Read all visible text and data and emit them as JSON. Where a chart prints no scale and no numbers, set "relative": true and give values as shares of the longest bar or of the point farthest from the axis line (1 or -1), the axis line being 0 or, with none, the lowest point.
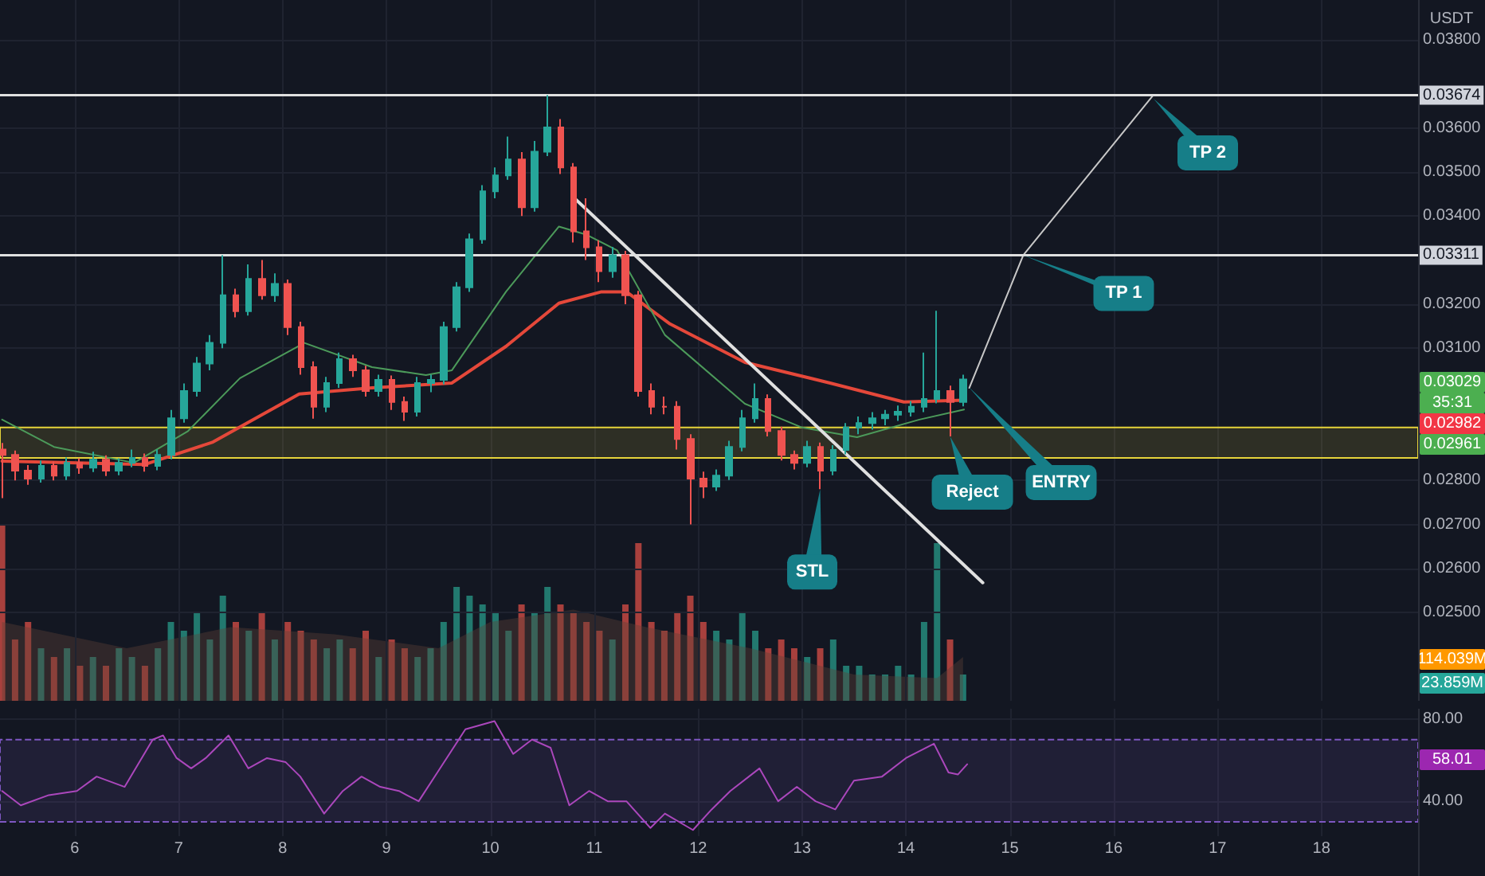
{
  "chart_data": [
    {
      "type": "candlestick",
      "ylabel": "USDT",
      "xlim": [
        5.28,
        18.93
      ],
      "xticks": [
        6,
        7,
        8,
        9,
        10,
        11,
        12,
        13,
        14,
        15,
        16,
        17,
        18
      ],
      "ylim": [
        0.023,
        0.0389
      ],
      "yticks": [
        {
          "value": 0.025,
          "label": "0.02500"
        },
        {
          "value": 0.026,
          "label": "0.02600"
        },
        {
          "value": 0.027,
          "label": "0.02700"
        },
        {
          "value": 0.028,
          "label": "0.02800"
        },
        {
          "value": 0.031,
          "label": "0.03100"
        },
        {
          "value": 0.032,
          "label": "0.03200"
        },
        {
          "value": 0.034,
          "label": "0.03400"
        },
        {
          "value": 0.035,
          "label": "0.03500"
        },
        {
          "value": 0.036,
          "label": "0.03600"
        },
        {
          "value": 0.038,
          "label": "0.03800"
        }
      ],
      "grid": true,
      "tick_labels": "y",
      "series": [
        {
          "x": [
            5.3,
            5.425,
            5.55,
            5.675,
            5.8,
            5.925,
            6.05,
            6.175,
            6.3,
            6.425,
            6.55,
            6.675,
            6.8,
            6.925,
            7.05,
            7.175,
            7.3,
            7.425,
            7.55,
            7.675,
            7.8,
            7.925,
            8.05,
            8.175,
            8.3,
            8.425,
            8.55,
            8.675,
            8.8,
            8.925,
            9.05,
            9.175,
            9.3,
            9.425,
            9.55,
            9.675,
            9.8,
            9.925,
            10.05,
            10.175,
            10.3,
            10.425,
            10.55,
            10.675,
            10.8,
            10.925,
            11.05,
            11.175,
            11.3,
            11.425,
            11.55,
            11.675,
            11.8,
            11.925,
            12.05,
            12.175,
            12.3,
            12.425,
            12.55,
            12.675,
            12.8,
            12.925,
            13.05,
            13.175,
            13.3,
            13.425,
            13.55,
            13.675,
            13.8,
            13.925,
            14.05,
            14.175,
            14.3,
            14.425,
            14.55
          ],
          "ohlc": [
            [
              0.0287,
              0.02885,
              0.0276,
              0.02858
            ],
            [
              0.02858,
              0.02868,
              0.028,
              0.02822
            ],
            [
              0.02822,
              0.02835,
              0.0279,
              0.02804
            ],
            [
              0.02804,
              0.02845,
              0.02795,
              0.02833
            ],
            [
              0.02833,
              0.02843,
              0.028,
              0.02811
            ],
            [
              0.02811,
              0.02852,
              0.02801,
              0.0284
            ],
            [
              0.0284,
              0.0285,
              0.02815,
              0.02829
            ],
            [
              0.02829,
              0.02865,
              0.02819,
              0.02847
            ],
            [
              0.02847,
              0.02857,
              0.0281,
              0.02822
            ],
            [
              0.02822,
              0.0285,
              0.02812,
              0.0284
            ],
            [
              0.0284,
              0.0287,
              0.0283,
              0.02851
            ],
            [
              0.02851,
              0.02861,
              0.0282,
              0.02833
            ],
            [
              0.02833,
              0.0287,
              0.02823,
              0.02858
            ],
            [
              0.02858,
              0.0296,
              0.02848,
              0.02941
            ],
            [
              0.02941,
              0.0302,
              0.02931,
              0.03003
            ],
            [
              0.03003,
              0.0308,
              0.0299,
              0.03065
            ],
            [
              0.03065,
              0.0313,
              0.0305,
              0.03112
            ],
            [
              0.03112,
              0.03311,
              0.031,
              0.0322
            ],
            [
              0.0322,
              0.03235,
              0.0317,
              0.03184
            ],
            [
              0.03184,
              0.0329,
              0.03174,
              0.03257
            ],
            [
              0.03257,
              0.033,
              0.0321,
              0.0322
            ],
            [
              0.0322,
              0.0327,
              0.03205,
              0.03246
            ],
            [
              0.03246,
              0.03256,
              0.0313,
              0.03148
            ],
            [
              0.03148,
              0.0316,
              0.0304,
              0.03057
            ],
            [
              0.03057,
              0.0307,
              0.0294,
              0.02967
            ],
            [
              0.02967,
              0.03035,
              0.02955,
              0.03021
            ],
            [
              0.03021,
              0.0309,
              0.0301,
              0.03075
            ],
            [
              0.03075,
              0.03085,
              0.03035,
              0.0305
            ],
            [
              0.0305,
              0.0306,
              0.0299,
              0.03003
            ],
            [
              0.03003,
              0.0304,
              0.0299,
              0.03028
            ],
            [
              0.03028,
              0.03038,
              0.0296,
              0.02978
            ],
            [
              0.02978,
              0.0299,
              0.02935,
              0.02956
            ],
            [
              0.02956,
              0.03035,
              0.02945,
              0.03021
            ],
            [
              0.03021,
              0.0304,
              0.03,
              0.03028
            ],
            [
              0.03028,
              0.0316,
              0.03018,
              0.03148
            ],
            [
              0.03148,
              0.0325,
              0.03138,
              0.03238
            ],
            [
              0.03238,
              0.0336,
              0.03228,
              0.03347
            ],
            [
              0.03347,
              0.0347,
              0.03337,
              0.03456
            ],
            [
              0.03456,
              0.0351,
              0.0344,
              0.03492
            ],
            [
              0.03492,
              0.0358,
              0.03482,
              0.03528
            ],
            [
              0.03528,
              0.03545,
              0.034,
              0.0342
            ],
            [
              0.0342,
              0.0357,
              0.0341,
              0.03546
            ],
            [
              0.03546,
              0.03674,
              0.03536,
              0.03601
            ],
            [
              0.03601,
              0.0362,
              0.03495,
              0.0351
            ],
            [
              0.0351,
              0.0352,
              0.0334,
              0.03365
            ],
            [
              0.03365,
              0.0344,
              0.033,
              0.03329
            ],
            [
              0.03329,
              0.03345,
              0.0325,
              0.03275
            ],
            [
              0.03275,
              0.0333,
              0.0326,
              0.03311
            ],
            [
              0.03311,
              0.03321,
              0.032,
              0.0322
            ],
            [
              0.0322,
              0.0323,
              0.0299,
              0.03003
            ],
            [
              0.03003,
              0.0302,
              0.0295,
              0.02967
            ],
            [
              0.02967,
              0.0299,
              0.0295,
              0.02967
            ],
            [
              0.02967,
              0.0298,
              0.0287,
              0.02894
            ],
            [
              0.02894,
              0.02905,
              0.027,
              0.02804
            ],
            [
              0.02804,
              0.0282,
              0.0276,
              0.02786
            ],
            [
              0.02786,
              0.02825,
              0.02776,
              0.02811
            ],
            [
              0.02811,
              0.0289,
              0.02801,
              0.02876
            ],
            [
              0.02876,
              0.0296,
              0.02866,
              0.02941
            ],
            [
              0.02941,
              0.0302,
              0.02931,
              0.02985
            ],
            [
              0.02985,
              0.02995,
              0.029,
              0.02912
            ],
            [
              0.02912,
              0.02922,
              0.02845,
              0.02858
            ],
            [
              0.02858,
              0.02868,
              0.02825,
              0.0284
            ],
            [
              0.0284,
              0.0289,
              0.0283,
              0.02876
            ],
            [
              0.02876,
              0.02886,
              0.0278,
              0.02822
            ],
            [
              0.02822,
              0.0288,
              0.02812,
              0.02869
            ],
            [
              0.02869,
              0.0293,
              0.02859,
              0.0292
            ],
            [
              0.0292,
              0.02945,
              0.02905,
              0.0293
            ],
            [
              0.0293,
              0.02955,
              0.02915,
              0.02941
            ],
            [
              0.02941,
              0.0296,
              0.02925,
              0.02949
            ],
            [
              0.02949,
              0.0297,
              0.02935,
              0.02956
            ],
            [
              0.02956,
              0.0298,
              0.02945,
              0.02967
            ],
            [
              0.02967,
              0.0309,
              0.02955,
              0.02985
            ],
            [
              0.02985,
              0.03185,
              0.02975,
              0.03003
            ],
            [
              0.03003,
              0.03015,
              0.029,
              0.02978
            ],
            [
              0.02978,
              0.0304,
              0.02968,
              0.03029
            ]
          ],
          "colors": [
            "#ef5350",
            "#ef5350",
            "#ef5350",
            "#26a69a",
            "#ef5350",
            "#26a69a",
            "#ef5350",
            "#26a69a",
            "#ef5350",
            "#26a69a",
            "#26a69a",
            "#ef5350",
            "#26a69a",
            "#26a69a",
            "#26a69a",
            "#26a69a",
            "#26a69a",
            "#26a69a",
            "#ef5350",
            "#26a69a",
            "#ef5350",
            "#26a69a",
            "#ef5350",
            "#ef5350",
            "#ef5350",
            "#26a69a",
            "#26a69a",
            "#ef5350",
            "#ef5350",
            "#26a69a",
            "#ef5350",
            "#ef5350",
            "#26a69a",
            "#26a69a",
            "#26a69a",
            "#26a69a",
            "#26a69a",
            "#26a69a",
            "#26a69a",
            "#26a69a",
            "#ef5350",
            "#26a69a",
            "#26a69a",
            "#ef5350",
            "#ef5350",
            "#ef5350",
            "#ef5350",
            "#26a69a",
            "#ef5350",
            "#ef5350",
            "#ef5350",
            "#ef5350",
            "#ef5350",
            "#ef5350",
            "#ef5350",
            "#26a69a",
            "#26a69a",
            "#26a69a",
            "#26a69a",
            "#ef5350",
            "#ef5350",
            "#ef5350",
            "#26a69a",
            "#ef5350",
            "#26a69a",
            "#26a69a",
            "#26a69a",
            "#26a69a",
            "#26a69a",
            "#26a69a",
            "#26a69a",
            "#26a69a",
            "#26a69a",
            "#ef5350",
            "#26a69a"
          ]
        },
        {
          "type": "line",
          "color": "#e5483a",
          "x": [
            5.3,
            6.67,
            7.33,
            8.16,
            8.86,
            9.63,
            10.15,
            10.66,
            11.07,
            11.31,
            11.73,
            12.45,
            13.27,
            13.98,
            14.56
          ],
          "values": [
            0.02844,
            0.02836,
            0.02887,
            0.02996,
            0.0301,
            0.03021,
            0.03104,
            0.03202,
            0.03228,
            0.03228,
            0.03155,
            0.03068,
            0.03021,
            0.02978,
            0.02982
          ]
        },
        {
          "type": "line",
          "color": "#4c9a5a",
          "x": [
            5.3,
            5.8,
            6.57,
            7.09,
            7.59,
            8.21,
            8.86,
            9.38,
            9.63,
            10.15,
            10.66,
            10.92,
            11.22,
            11.68,
            12.45,
            13.0,
            13.53,
            14.13,
            14.56
          ],
          "values": [
            0.02938,
            0.02876,
            0.0284,
            0.02912,
            0.03032,
            0.03112,
            0.03057,
            0.03039,
            0.0305,
            0.03228,
            0.03376,
            0.03358,
            0.03322,
            0.0313,
            0.02974,
            0.0292,
            0.02898,
            0.02938,
            0.02961
          ]
        },
        {
          "type": "line",
          "color": "#e0e0e0",
          "x": [
            10.82,
            14.74
          ],
          "values": [
            0.03438,
            0.02568
          ]
        },
        {
          "type": "line",
          "color": "#c8c8c8",
          "x": [
            14.61,
            15.13,
            16.38
          ],
          "values": [
            0.0301,
            0.03311,
            0.03674
          ]
        }
      ],
      "ref_lines": [
        {
          "axis": "y",
          "value": 0.03674,
          "label": "0.03674",
          "color": "#e0e0e0"
        },
        {
          "axis": "y",
          "value": 0.03311,
          "label": "0.03311",
          "color": "#e0e0e0"
        }
      ],
      "bands": [
        {
          "axis": "y",
          "from": 0.02851,
          "to": 0.0292,
          "color": "#e6d43a"
        }
      ],
      "annotations": [
        {
          "text": "TP 1",
          "x": 15.13,
          "y": 0.03311
        },
        {
          "text": "Reject",
          "x": 14.425,
          "y": 0.029
        },
        {
          "text": "STL",
          "x": 13.175,
          "y": 0.0278
        },
        "TP 2",
        "ENTRY",
        "0.03029",
        "35:31",
        "0.02982",
        "0.02961"
      ]
    },
    {
      "type": "bar",
      "relative": true,
      "xlim": [
        5.28,
        18.93
      ],
      "tick_labels": false,
      "series": [
        {
          "x": [
            5.3,
            5.425,
            5.55,
            5.675,
            5.8,
            5.925,
            6.05,
            6.175,
            6.3,
            6.425,
            6.55,
            6.675,
            6.8,
            6.925,
            7.05,
            7.175,
            7.3,
            7.425,
            7.55,
            7.675,
            7.8,
            7.925,
            8.05,
            8.175,
            8.3,
            8.425,
            8.55,
            8.675,
            8.8,
            8.925,
            9.05,
            9.175,
            9.3,
            9.425,
            9.55,
            9.675,
            9.8,
            9.925,
            10.05,
            10.175,
            10.3,
            10.425,
            10.55,
            10.675,
            10.8,
            10.925,
            11.05,
            11.175,
            11.3,
            11.425,
            11.55,
            11.675,
            11.8,
            11.925,
            12.05,
            12.175,
            12.3,
            12.425,
            12.55,
            12.675,
            12.8,
            12.925,
            13.05,
            13.175,
            13.3,
            13.425,
            13.55,
            13.675,
            13.8,
            13.925,
            14.05,
            14.175,
            14.3,
            14.425,
            14.55
          ],
          "values": [
            1.0,
            0.35,
            0.45,
            0.3,
            0.25,
            0.3,
            0.2,
            0.25,
            0.2,
            0.3,
            0.25,
            0.2,
            0.3,
            0.45,
            0.4,
            0.5,
            0.35,
            0.6,
            0.45,
            0.4,
            0.5,
            0.35,
            0.45,
            0.4,
            0.35,
            0.3,
            0.35,
            0.3,
            0.4,
            0.25,
            0.35,
            0.3,
            0.25,
            0.3,
            0.45,
            0.65,
            0.6,
            0.55,
            0.5,
            0.4,
            0.55,
            0.5,
            0.65,
            0.55,
            0.5,
            0.45,
            0.4,
            0.35,
            0.55,
            0.9,
            0.45,
            0.4,
            0.5,
            0.6,
            0.45,
            0.4,
            0.35,
            0.5,
            0.4,
            0.3,
            0.35,
            0.3,
            0.25,
            0.3,
            0.35,
            0.2,
            0.2,
            0.15,
            0.15,
            0.2,
            0.15,
            0.45,
            0.9,
            0.35,
            0.15
          ],
          "colors": [
            "#a8403d",
            "#a8403d",
            "#a8403d",
            "#22796f",
            "#a8403d",
            "#22796f",
            "#a8403d",
            "#22796f",
            "#a8403d",
            "#22796f",
            "#22796f",
            "#a8403d",
            "#22796f",
            "#22796f",
            "#22796f",
            "#22796f",
            "#22796f",
            "#22796f",
            "#a8403d",
            "#22796f",
            "#a8403d",
            "#22796f",
            "#a8403d",
            "#a8403d",
            "#a8403d",
            "#22796f",
            "#22796f",
            "#a8403d",
            "#a8403d",
            "#22796f",
            "#a8403d",
            "#a8403d",
            "#22796f",
            "#22796f",
            "#22796f",
            "#22796f",
            "#22796f",
            "#22796f",
            "#22796f",
            "#22796f",
            "#a8403d",
            "#22796f",
            "#22796f",
            "#a8403d",
            "#a8403d",
            "#a8403d",
            "#a8403d",
            "#22796f",
            "#a8403d",
            "#a8403d",
            "#a8403d",
            "#a8403d",
            "#a8403d",
            "#a8403d",
            "#a8403d",
            "#22796f",
            "#22796f",
            "#22796f",
            "#22796f",
            "#a8403d",
            "#a8403d",
            "#a8403d",
            "#22796f",
            "#a8403d",
            "#22796f",
            "#22796f",
            "#22796f",
            "#22796f",
            "#22796f",
            "#22796f",
            "#22796f",
            "#22796f",
            "#22796f",
            "#a8403d",
            "#22796f"
          ]
        },
        {
          "type": "area",
          "color": "#5d4037",
          "x": [
            5.3,
            6.5,
            7.5,
            8.5,
            9.5,
            10.0,
            10.8,
            11.5,
            12.5,
            13.5,
            14.3,
            14.55
          ],
          "values": [
            0.45,
            0.3,
            0.42,
            0.38,
            0.3,
            0.45,
            0.52,
            0.42,
            0.3,
            0.15,
            0.13,
            0.25
          ]
        }
      ],
      "annotations": [
        "114.039M",
        "23.859M"
      ]
    },
    {
      "type": "line",
      "color": "#ab47bc",
      "xlim": [
        5.28,
        18.93
      ],
      "ylim": [
        23,
        85
      ],
      "xticks": [
        6,
        7,
        8,
        9,
        10,
        11,
        12,
        13,
        14,
        15,
        16,
        17,
        18
      ],
      "yticks": [
        {
          "value": 40,
          "label": "40.00"
        },
        {
          "value": 80,
          "label": "80.00"
        }
      ],
      "grid": true,
      "x": [
        5.3,
        5.48,
        5.75,
        6.02,
        6.21,
        6.48,
        6.75,
        6.85,
        6.98,
        7.12,
        7.26,
        7.48,
        7.67,
        7.85,
        8.03,
        8.17,
        8.4,
        8.58,
        8.76,
        8.94,
        9.12,
        9.31,
        9.49,
        9.76,
        10.04,
        10.22,
        10.4,
        10.58,
        10.76,
        10.95,
        11.13,
        11.31,
        11.54,
        11.68,
        11.95,
        12.13,
        12.31,
        12.59,
        12.77,
        12.95,
        13.13,
        13.32,
        13.5,
        13.77,
        14.0,
        14.27,
        14.41,
        14.5,
        14.59
      ],
      "values": [
        45,
        38,
        43,
        45,
        52,
        47,
        70,
        72,
        61,
        56,
        61,
        72,
        56,
        61,
        59,
        52,
        34,
        45,
        52,
        47,
        45,
        40,
        54,
        75,
        79,
        63,
        70,
        66,
        38,
        45,
        40,
        40,
        27,
        34,
        26,
        36,
        45,
        56,
        40,
        47,
        40,
        36,
        50,
        52,
        61,
        68,
        54,
        53,
        58.01
      ],
      "bands": [
        {
          "axis": "y",
          "from": 30,
          "to": 70,
          "color": "#7e57c2"
        }
      ],
      "annotations": [
        "58.01"
      ]
    }
  ]
}
